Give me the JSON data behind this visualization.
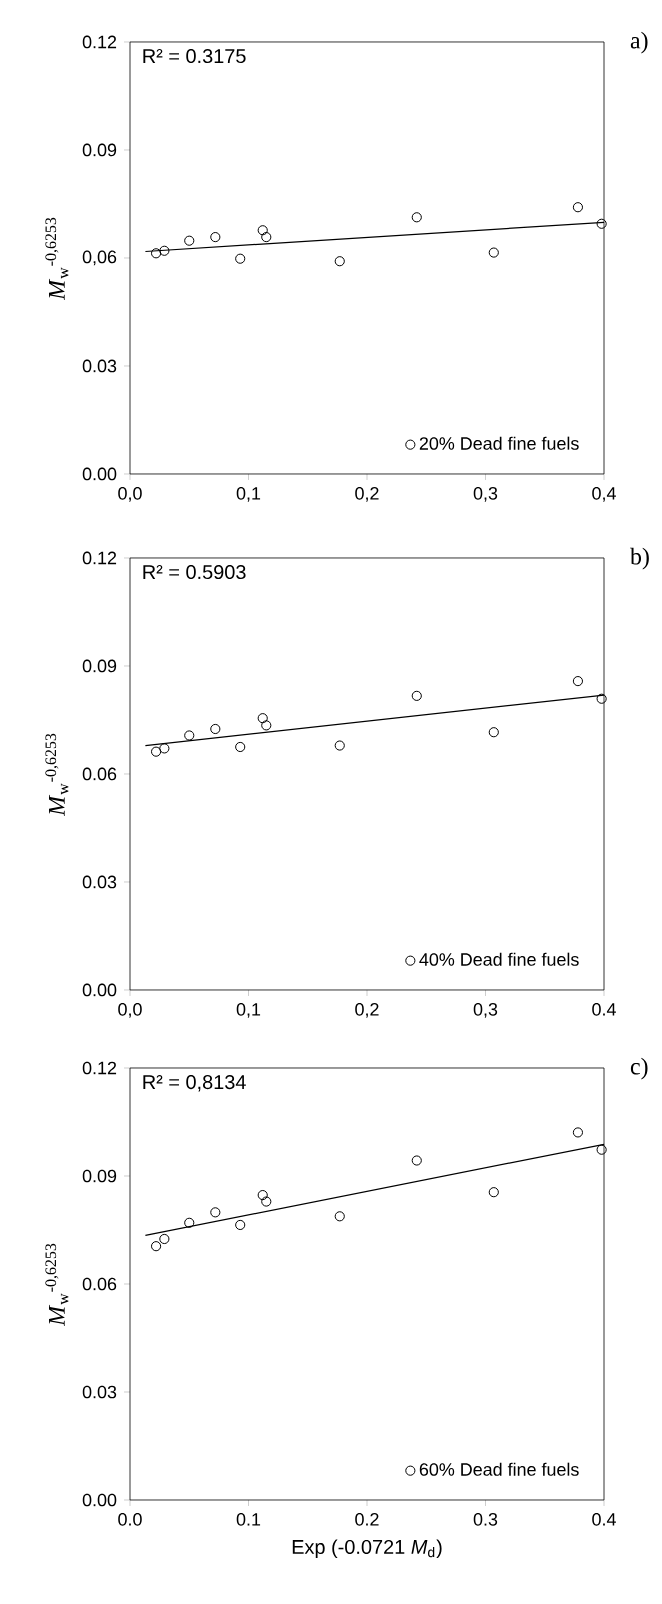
{
  "chart_data": [
    {
      "type": "scatter",
      "ylabel": "*M*$_{w}$$^{-0,6253}$",
      "annotations": [
        "R² = 0.3175",
        "a)"
      ],
      "xlim": [
        0,
        0.4
      ],
      "ylim": [
        0,
        0.12
      ],
      "xticks": [
        {
          "value": 0,
          "label": "0,0"
        },
        {
          "value": 0.1,
          "label": "0,1"
        },
        {
          "value": 0.2,
          "label": "0,2"
        },
        {
          "value": 0.3,
          "label": "0,3"
        },
        {
          "value": 0.4,
          "label": "0,4"
        }
      ],
      "yticks": [
        {
          "value": 0,
          "label": "0.00"
        },
        {
          "value": 0.03,
          "label": "0.03"
        },
        {
          "value": 0.06,
          "label": "0,06"
        },
        {
          "value": 0.09,
          "label": "0.09"
        },
        {
          "value": 0.12,
          "label": "0.12"
        }
      ],
      "grid": false,
      "legend": "bottom right",
      "series": [
        {
          "name": "20% Dead fine fuels",
          "marker": "circle",
          "color": "#000000",
          "x": [
            0.022,
            0.029,
            0.05,
            0.072,
            0.093,
            0.112,
            0.115,
            0.177,
            0.242,
            0.307,
            0.378,
            0.398
          ],
          "values": [
            0.0613,
            0.062,
            0.0648,
            0.0658,
            0.0598,
            0.0677,
            0.0658,
            0.0591,
            0.0713,
            0.0615,
            0.0741,
            0.0695
          ]
        },
        {
          "type": "line",
          "marker": "none",
          "color": "#000000",
          "x": [
            0.013,
            0.4
          ],
          "values": [
            0.0618,
            0.0699
          ]
        }
      ]
    },
    {
      "type": "scatter",
      "ylabel": "*M*$_{w}$$^{-0,6253}$",
      "annotations": [
        "R² = 0.5903",
        "b)"
      ],
      "xlim": [
        0,
        0.4
      ],
      "ylim": [
        0,
        0.12
      ],
      "xticks": [
        {
          "value": 0,
          "label": "0,0"
        },
        {
          "value": 0.1,
          "label": "0,1"
        },
        {
          "value": 0.2,
          "label": "0,2"
        },
        {
          "value": 0.3,
          "label": "0,3"
        },
        {
          "value": 0.4,
          "label": "0.4"
        }
      ],
      "yticks": [
        {
          "value": 0,
          "label": "0.00"
        },
        {
          "value": 0.03,
          "label": "0.03"
        },
        {
          "value": 0.06,
          "label": "0.06"
        },
        {
          "value": 0.09,
          "label": "0.09"
        },
        {
          "value": 0.12,
          "label": "0.12"
        }
      ],
      "grid": false,
      "legend": "bottom right",
      "series": [
        {
          "name": "40% Dead fine fuels",
          "marker": "circle",
          "color": "#000000",
          "x": [
            0.022,
            0.029,
            0.05,
            0.072,
            0.093,
            0.112,
            0.115,
            0.177,
            0.242,
            0.307,
            0.378,
            0.398
          ],
          "values": [
            0.0662,
            0.0671,
            0.0707,
            0.0725,
            0.0675,
            0.0755,
            0.0735,
            0.0679,
            0.0817,
            0.0716,
            0.0858,
            0.0809
          ]
        },
        {
          "type": "line",
          "marker": "none",
          "color": "#000000",
          "x": [
            0.013,
            0.4
          ],
          "values": [
            0.0679,
            0.0819
          ]
        }
      ]
    },
    {
      "type": "scatter",
      "xlabel": "Exp (-0.0721 *M*$_{d}$)",
      "ylabel": "*M*$_{w}$$^{-0,6253}$",
      "annotations": [
        "R² = 0,8134",
        "c)"
      ],
      "xlim": [
        0,
        0.4
      ],
      "ylim": [
        0,
        0.12
      ],
      "xticks": [
        {
          "value": 0,
          "label": "0.0"
        },
        {
          "value": 0.1,
          "label": "0.1"
        },
        {
          "value": 0.2,
          "label": "0.2"
        },
        {
          "value": 0.3,
          "label": "0.3"
        },
        {
          "value": 0.4,
          "label": "0.4"
        }
      ],
      "yticks": [
        {
          "value": 0,
          "label": "0.00"
        },
        {
          "value": 0.03,
          "label": "0.03"
        },
        {
          "value": 0.06,
          "label": "0.06"
        },
        {
          "value": 0.09,
          "label": "0.09"
        },
        {
          "value": 0.12,
          "label": "0.12"
        }
      ],
      "grid": false,
      "legend": "bottom right",
      "series": [
        {
          "name": "60% Dead fine fuels",
          "marker": "circle",
          "color": "#000000",
          "x": [
            0.022,
            0.029,
            0.05,
            0.072,
            0.093,
            0.112,
            0.115,
            0.177,
            0.242,
            0.307,
            0.378,
            0.398
          ],
          "values": [
            0.0705,
            0.0725,
            0.077,
            0.0799,
            0.0764,
            0.0847,
            0.0829,
            0.0788,
            0.0943,
            0.0855,
            0.1021,
            0.0973
          ]
        },
        {
          "type": "line",
          "marker": "none",
          "color": "#000000",
          "x": [
            0.013,
            0.4
          ],
          "values": [
            0.0735,
            0.0988
          ]
        }
      ]
    }
  ]
}
